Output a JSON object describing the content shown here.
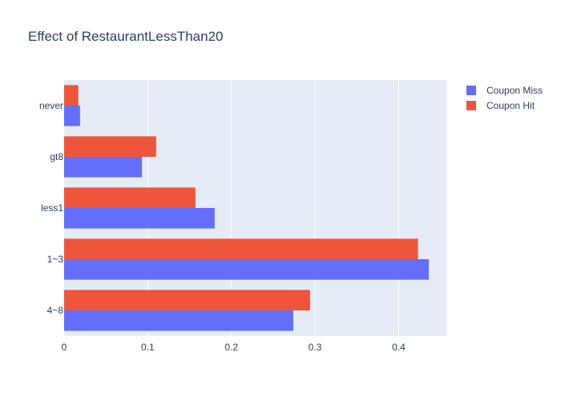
{
  "chart_data": {
    "type": "bar",
    "orientation": "horizontal",
    "title": "Effect of RestaurantLessThan20",
    "xlabel": "",
    "ylabel": "",
    "categories": [
      "4~8",
      "1~3",
      "less1",
      "gt8",
      "never"
    ],
    "xlim": [
      0,
      0.457
    ],
    "xticks": [
      0,
      0.1,
      0.2,
      0.3,
      0.4
    ],
    "xtick_labels": [
      "0",
      "0.1",
      "0.2",
      "0.3",
      "0.4"
    ],
    "grid": true,
    "legend_position": "top-right",
    "series": [
      {
        "name": "Coupon Miss",
        "color": "#636efa",
        "values": [
          0.274,
          0.436,
          0.18,
          0.093,
          0.019
        ]
      },
      {
        "name": "Coupon Hit",
        "color": "#ef553b",
        "values": [
          0.294,
          0.423,
          0.157,
          0.11,
          0.017
        ]
      }
    ],
    "plot_background": "#e5ecf6"
  }
}
